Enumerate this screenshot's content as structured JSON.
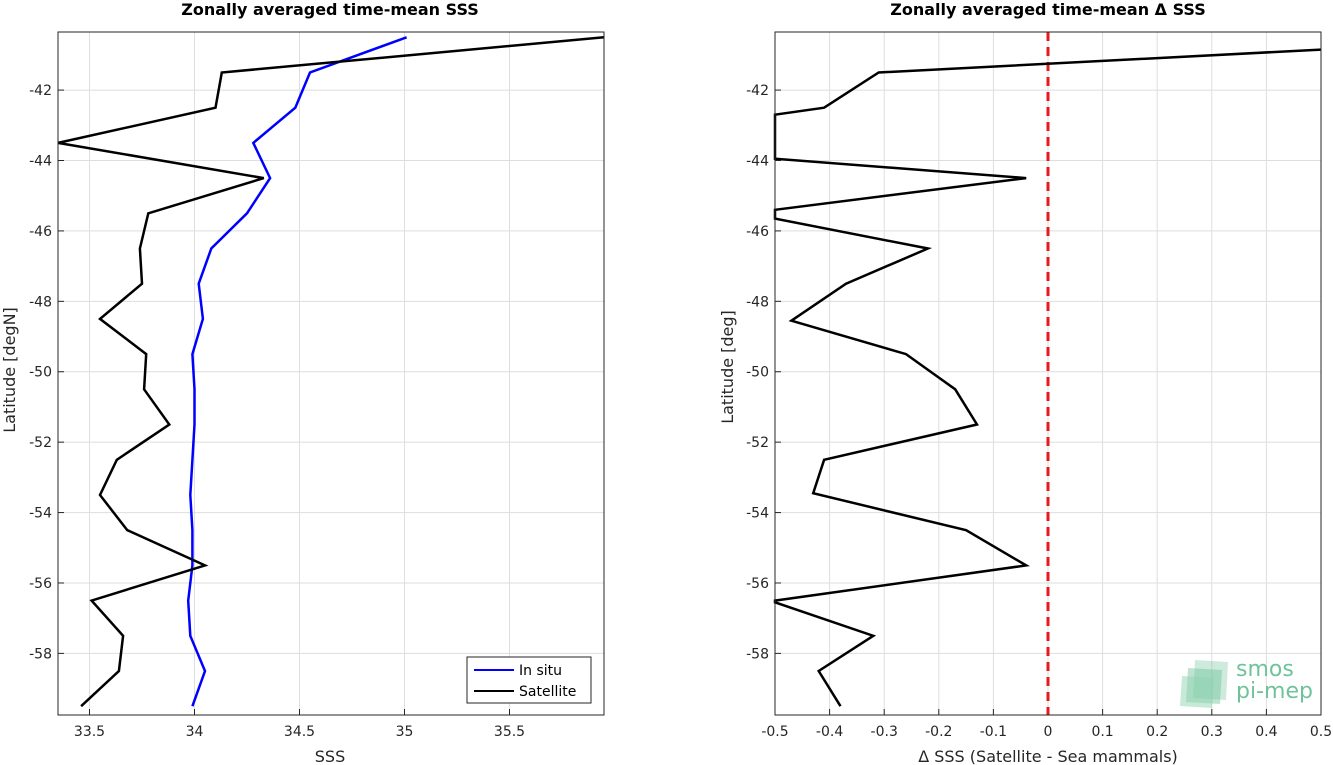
{
  "chart_data": [
    {
      "type": "line",
      "title": "Zonally averaged time-mean SSS",
      "xlabel": "SSS",
      "ylabel": "Latitude [degN]",
      "xlim": [
        33.35,
        35.95
      ],
      "ylim": [
        -59.75,
        -40.35
      ],
      "xticks": [
        33.5,
        34,
        34.5,
        35,
        35.5
      ],
      "xtick_labels": [
        "33.5",
        "34",
        "34.5",
        "35",
        "35.5"
      ],
      "yticks": [
        -58,
        -56,
        -54,
        -52,
        -50,
        -48,
        -46,
        -44,
        -42
      ],
      "ytick_labels": [
        "-58",
        "-56",
        "-54",
        "-52",
        "-50",
        "-48",
        "-46",
        "-44",
        "-42"
      ],
      "grid": true,
      "legend": {
        "placement": "bottom-right",
        "entries": [
          "In situ",
          "Satellite"
        ]
      },
      "series": [
        {
          "name": "In situ",
          "color": "#0000ff",
          "y": [
            -40.5,
            -41.5,
            -42.5,
            -43.5,
            -44.5,
            -45.5,
            -46.5,
            -47.5,
            -48.5,
            -49.5,
            -50.5,
            -51.5,
            -52.5,
            -53.5,
            -54.5,
            -55.5,
            -56.5,
            -57.5,
            -58.5,
            -59.5
          ],
          "x": [
            35.01,
            34.55,
            34.48,
            34.28,
            34.36,
            34.25,
            34.08,
            34.02,
            34.04,
            33.99,
            34.0,
            34.0,
            33.99,
            33.98,
            33.99,
            33.99,
            33.97,
            33.98,
            34.05,
            33.99
          ]
        },
        {
          "name": "Satellite",
          "color": "#000000",
          "y": [
            -40.5,
            -41.5,
            -42.5,
            -43.5,
            -44.5,
            -45.5,
            -46.5,
            -47.5,
            -48.5,
            -49.5,
            -50.5,
            -51.5,
            -52.5,
            -53.5,
            -54.5,
            -55.5,
            -56.5,
            -57.5,
            -58.5,
            -59.5
          ],
          "x": [
            35.95,
            34.13,
            34.1,
            33.35,
            34.33,
            33.78,
            33.74,
            33.75,
            33.55,
            33.77,
            33.76,
            33.88,
            33.63,
            33.55,
            33.68,
            34.05,
            33.51,
            33.66,
            33.64,
            33.46
          ]
        }
      ]
    },
    {
      "type": "line",
      "title": "Zonally averaged time-mean Δ SSS",
      "xlabel": "Δ SSS (Satellite - Sea mammals)",
      "ylabel": "Latitude [deg]",
      "xlim": [
        -0.5,
        0.5
      ],
      "ylim": [
        -59.75,
        -40.35
      ],
      "xticks": [
        -0.5,
        -0.4,
        -0.3,
        -0.2,
        -0.1,
        0,
        0.1,
        0.2,
        0.3,
        0.4,
        0.5
      ],
      "xtick_labels": [
        "-0.5",
        "-0.4",
        "-0.3",
        "-0.2",
        "-0.1",
        "0",
        "0.1",
        "0.2",
        "0.3",
        "0.4",
        "0.5"
      ],
      "yticks": [
        -58,
        -56,
        -54,
        -52,
        -50,
        -48,
        -46,
        -44,
        -42
      ],
      "ytick_labels": [
        "-58",
        "-56",
        "-54",
        "-52",
        "-50",
        "-48",
        "-46",
        "-44",
        "-42"
      ],
      "grid": true,
      "reference_line": {
        "x": 0,
        "color": "#e41a1c",
        "style": "dashed"
      },
      "series": [
        {
          "color": "#000000",
          "y": [
            -40.85,
            -41.5,
            -42.5,
            -42.7,
            -43.95,
            -44.5,
            -45.4,
            -45.65,
            -46.5,
            -47.5,
            -48.55,
            -49.5,
            -50.5,
            -51.5,
            -52.5,
            -53.45,
            -54.5,
            -55.5,
            -56.5,
            -56.55,
            -57.5,
            -58.5,
            -59.5
          ],
          "x": [
            0.5,
            -0.31,
            -0.41,
            -0.5,
            -0.5,
            -0.04,
            -0.5,
            -0.5,
            -0.22,
            -0.37,
            -0.47,
            -0.26,
            -0.17,
            -0.13,
            -0.41,
            -0.43,
            -0.15,
            -0.04,
            -0.5,
            -0.5,
            -0.32,
            -0.42,
            -0.38
          ]
        }
      ]
    }
  ],
  "logo": {
    "line1": "smos",
    "line2": "pi-mep"
  }
}
